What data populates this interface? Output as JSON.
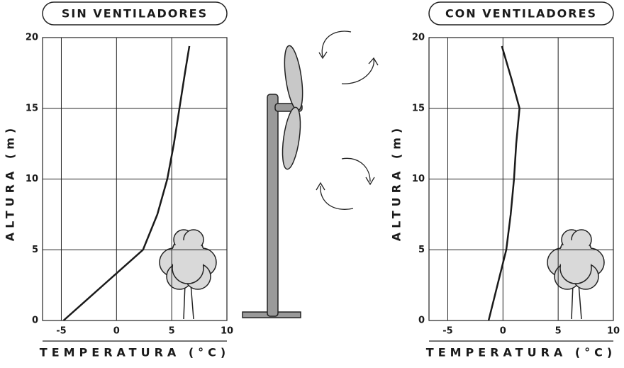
{
  "chart_data": [
    {
      "type": "line",
      "title": "SIN VENTILADORES",
      "x_label": "TEMPERATURA (°C)",
      "y_label": "ALTURA (m)",
      "x": [
        -4.8,
        -1.2,
        2.4,
        3.7,
        4.6,
        5.2,
        5.7,
        6.2,
        6.6
      ],
      "series": [
        {
          "color": "#1a1a1a",
          "values": [
            0,
            2.5,
            5,
            7.5,
            10,
            12.5,
            15,
            17.5,
            19.4
          ]
        }
      ],
      "xlim": [
        -6.7,
        10
      ],
      "ylim": [
        0,
        20
      ],
      "xticks": [
        -5,
        0,
        5,
        10
      ],
      "yticks": [
        0,
        5,
        10,
        15,
        20
      ],
      "grid": true
    },
    {
      "type": "line",
      "title": "CON VENTILADORES",
      "x_label": "TEMPERATURA (°C)",
      "y_label": "ALTURA (m)",
      "x": [
        -1.3,
        -0.5,
        0.3,
        0.7,
        1.0,
        1.2,
        1.5,
        0.8,
        -0.1
      ],
      "series": [
        {
          "color": "#1a1a1a",
          "values": [
            0,
            2.5,
            5,
            7.5,
            10,
            12.5,
            15,
            17,
            19.4
          ]
        }
      ],
      "xlim": [
        -6.7,
        10
      ],
      "ylim": [
        0,
        20
      ],
      "xticks": [
        -5,
        0,
        5,
        10
      ],
      "yticks": [
        0,
        5,
        10,
        15,
        20
      ],
      "grid": true
    }
  ]
}
